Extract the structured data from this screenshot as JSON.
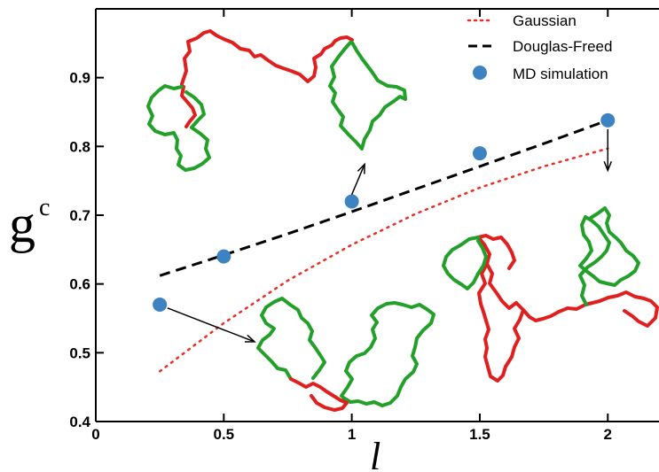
{
  "chart_data": {
    "type": "scatter",
    "xlabel": "l",
    "ylabel": "g",
    "ylabel_subscript": "c",
    "xlim": [
      0,
      2.2
    ],
    "ylim": [
      0.4,
      1.0
    ],
    "xticks": [
      0,
      0.5,
      1,
      1.5,
      2
    ],
    "xtick_labels": [
      "0",
      "0.5",
      "1",
      "1.5",
      "2"
    ],
    "yticks": [
      0.4,
      0.5,
      0.6,
      0.7,
      0.8,
      0.9
    ],
    "ytick_labels": [
      "0.4",
      "0.5",
      "0.6",
      "0.7",
      "0.8",
      "0.9"
    ],
    "grid": false,
    "legend_position": "top-right",
    "series": [
      {
        "name": "Gaussian",
        "kind": "line",
        "style": "dotted",
        "color": "#e8302a",
        "x": [
          0.25,
          0.5,
          0.75,
          1.0,
          1.25,
          1.5,
          1.75,
          2.0
        ],
        "y": [
          0.473,
          0.543,
          0.605,
          0.657,
          0.702,
          0.74,
          0.771,
          0.797
        ]
      },
      {
        "name": "Douglas-Freed",
        "kind": "line",
        "style": "dashed",
        "color": "#000000",
        "x": [
          0.25,
          0.5,
          0.75,
          1.0,
          1.25,
          1.5,
          1.75,
          2.0
        ],
        "y": [
          0.612,
          0.642,
          0.673,
          0.705,
          0.738,
          0.771,
          0.804,
          0.838
        ]
      },
      {
        "name": "MD simulation",
        "kind": "markers",
        "color": "#3d83c2",
        "x": [
          0.25,
          0.5,
          1.0,
          1.5,
          2.0
        ],
        "y": [
          0.57,
          0.64,
          0.72,
          0.79,
          0.838
        ]
      }
    ],
    "annotations": [
      {
        "type": "arrow",
        "from": [
          0.28,
          0.565
        ],
        "to": [
          0.62,
          0.516
        ],
        "points_to": "polymer-inset-bottom"
      },
      {
        "type": "arrow",
        "from": [
          1.0,
          0.73
        ],
        "to": [
          1.05,
          0.774
        ],
        "points_to": "polymer-inset-top"
      },
      {
        "type": "arrow",
        "from": [
          2.0,
          0.825
        ],
        "to": [
          2.0,
          0.765
        ],
        "points_to": "polymer-inset-right"
      }
    ]
  },
  "colors": {
    "red_segment": "#e01f1f",
    "green_segment": "#22a02a",
    "marker": "#3d83c2"
  }
}
